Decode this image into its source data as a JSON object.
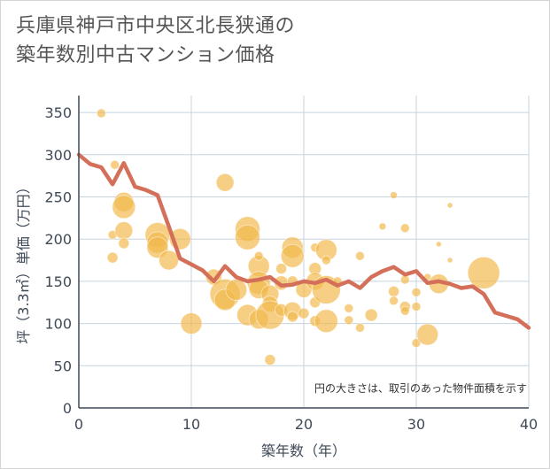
{
  "title": {
    "line1": "兵庫県神戸市中央区北長狭通の",
    "line2": "築年数別中古マンション価格"
  },
  "chart_data": {
    "type": "scatter+line",
    "xlabel": "築年数（年）",
    "ylabel": "坪（3.3㎡）単価（万円）",
    "xlim": [
      0,
      40
    ],
    "ylim": [
      0,
      370
    ],
    "xticks": [
      0,
      10,
      20,
      30,
      40
    ],
    "yticks": [
      0,
      50,
      100,
      150,
      200,
      250,
      300,
      350
    ],
    "grid": true,
    "note": "円の大きさは、取引のあった物件面積を示す",
    "colors": {
      "bubble": "#f2b84b",
      "line": "#d4705a",
      "grid": "#c5d3df"
    },
    "line_series": {
      "x": [
        0,
        1,
        2,
        3,
        4,
        5,
        6,
        7,
        8,
        9,
        10,
        11,
        12,
        13,
        14,
        15,
        16,
        17,
        18,
        19,
        20,
        21,
        22,
        23,
        24,
        25,
        26,
        27,
        28,
        29,
        30,
        31,
        32,
        33,
        34,
        35,
        36,
        37,
        38,
        39,
        40
      ],
      "y": [
        300,
        289,
        285,
        265,
        290,
        262,
        258,
        252,
        215,
        177,
        170,
        163,
        150,
        168,
        155,
        150,
        152,
        155,
        145,
        146,
        150,
        148,
        152,
        145,
        150,
        142,
        155,
        162,
        167,
        158,
        162,
        148,
        150,
        147,
        142,
        144,
        135,
        113,
        109,
        105,
        95
      ]
    },
    "bubbles": [
      {
        "x": 2,
        "y": 349,
        "s": 5
      },
      {
        "x": 3.2,
        "y": 288,
        "s": 5
      },
      {
        "x": 4,
        "y": 244,
        "s": 11
      },
      {
        "x": 4,
        "y": 238,
        "s": 13
      },
      {
        "x": 3,
        "y": 205,
        "s": 5
      },
      {
        "x": 4,
        "y": 210,
        "s": 10
      },
      {
        "x": 4,
        "y": 195,
        "s": 6
      },
      {
        "x": 3,
        "y": 178,
        "s": 6
      },
      {
        "x": 7,
        "y": 205,
        "s": 14
      },
      {
        "x": 7,
        "y": 196,
        "s": 12
      },
      {
        "x": 7,
        "y": 190,
        "s": 12
      },
      {
        "x": 8,
        "y": 175,
        "s": 11
      },
      {
        "x": 9,
        "y": 200,
        "s": 12
      },
      {
        "x": 10,
        "y": 100,
        "s": 12
      },
      {
        "x": 12,
        "y": 155,
        "s": 9
      },
      {
        "x": 13,
        "y": 267,
        "s": 10
      },
      {
        "x": 13,
        "y": 135,
        "s": 17
      },
      {
        "x": 13,
        "y": 128,
        "s": 12
      },
      {
        "x": 14,
        "y": 140,
        "s": 12
      },
      {
        "x": 15,
        "y": 212,
        "s": 14
      },
      {
        "x": 15,
        "y": 202,
        "s": 14
      },
      {
        "x": 15,
        "y": 110,
        "s": 12
      },
      {
        "x": 16,
        "y": 168,
        "s": 12
      },
      {
        "x": 16,
        "y": 180,
        "s": 5
      },
      {
        "x": 16,
        "y": 148,
        "s": 13
      },
      {
        "x": 16,
        "y": 141,
        "s": 11
      },
      {
        "x": 16,
        "y": 105,
        "s": 11
      },
      {
        "x": 17,
        "y": 135,
        "s": 10
      },
      {
        "x": 17,
        "y": 123,
        "s": 9
      },
      {
        "x": 17,
        "y": 110,
        "s": 16
      },
      {
        "x": 17,
        "y": 57,
        "s": 6
      },
      {
        "x": 18,
        "y": 165,
        "s": 6
      },
      {
        "x": 18,
        "y": 148,
        "s": 8
      },
      {
        "x": 18,
        "y": 116,
        "s": 7
      },
      {
        "x": 19,
        "y": 190,
        "s": 12
      },
      {
        "x": 19,
        "y": 180,
        "s": 13
      },
      {
        "x": 19,
        "y": 150,
        "s": 6
      },
      {
        "x": 19,
        "y": 115,
        "s": 10
      },
      {
        "x": 19,
        "y": 108,
        "s": 6
      },
      {
        "x": 20,
        "y": 140,
        "s": 9
      },
      {
        "x": 20,
        "y": 112,
        "s": 6
      },
      {
        "x": 21,
        "y": 190,
        "s": 5
      },
      {
        "x": 21,
        "y": 165,
        "s": 7
      },
      {
        "x": 21,
        "y": 150,
        "s": 10
      },
      {
        "x": 21,
        "y": 125,
        "s": 6
      },
      {
        "x": 21,
        "y": 103,
        "s": 6
      },
      {
        "x": 22,
        "y": 187,
        "s": 12
      },
      {
        "x": 22,
        "y": 175,
        "s": 5
      },
      {
        "x": 22,
        "y": 140,
        "s": 16
      },
      {
        "x": 22,
        "y": 103,
        "s": 13
      },
      {
        "x": 23,
        "y": 150,
        "s": 5
      },
      {
        "x": 24,
        "y": 118,
        "s": 5
      },
      {
        "x": 24,
        "y": 104,
        "s": 5
      },
      {
        "x": 25,
        "y": 180,
        "s": 5
      },
      {
        "x": 25,
        "y": 95,
        "s": 5
      },
      {
        "x": 26,
        "y": 110,
        "s": 7
      },
      {
        "x": 27,
        "y": 215,
        "s": 4
      },
      {
        "x": 28,
        "y": 252,
        "s": 4
      },
      {
        "x": 28,
        "y": 138,
        "s": 6
      },
      {
        "x": 28,
        "y": 127,
        "s": 5
      },
      {
        "x": 29,
        "y": 213,
        "s": 5
      },
      {
        "x": 29,
        "y": 152,
        "s": 5
      },
      {
        "x": 29,
        "y": 120,
        "s": 6
      },
      {
        "x": 29,
        "y": 115,
        "s": 5
      },
      {
        "x": 30,
        "y": 137,
        "s": 5
      },
      {
        "x": 30,
        "y": 120,
        "s": 5
      },
      {
        "x": 30,
        "y": 77,
        "s": 5
      },
      {
        "x": 31,
        "y": 155,
        "s": 4
      },
      {
        "x": 31,
        "y": 87,
        "s": 12
      },
      {
        "x": 32,
        "y": 147,
        "s": 11
      },
      {
        "x": 32,
        "y": 194,
        "s": 3
      },
      {
        "x": 33,
        "y": 240,
        "s": 3
      },
      {
        "x": 33,
        "y": 175,
        "s": 3
      },
      {
        "x": 36,
        "y": 160,
        "s": 18
      }
    ]
  }
}
